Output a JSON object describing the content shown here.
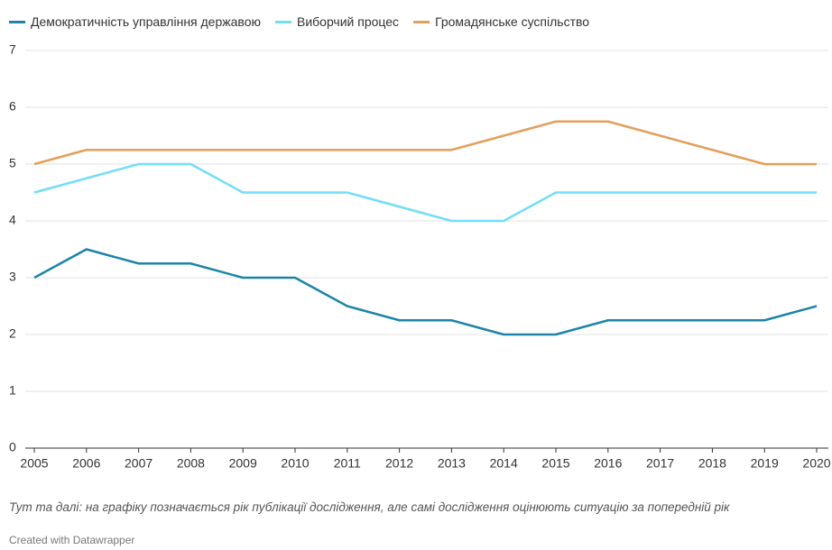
{
  "chart_data": {
    "type": "line",
    "x": [
      2005,
      2006,
      2007,
      2008,
      2009,
      2010,
      2011,
      2012,
      2013,
      2014,
      2015,
      2016,
      2017,
      2018,
      2019,
      2020
    ],
    "series": [
      {
        "name": "Демократичність управління державою",
        "color": "#1d84a8",
        "values": [
          3,
          3.5,
          3.25,
          3.25,
          3,
          3,
          2.5,
          2.25,
          2.25,
          2,
          2,
          2.25,
          2.25,
          2.25,
          2.25,
          2.5
        ]
      },
      {
        "name": "Виборчий процес",
        "color": "#72def6",
        "values": [
          4.5,
          4.75,
          5,
          5,
          4.5,
          4.5,
          4.5,
          4.25,
          4,
          4,
          4.5,
          4.5,
          4.5,
          4.5,
          4.5,
          4.5
        ]
      },
      {
        "name": "Громадянське суспільство",
        "color": "#e39f5c",
        "values": [
          5,
          5.25,
          5.25,
          5.25,
          5.25,
          5.25,
          5.25,
          5.25,
          5.25,
          5.5,
          5.75,
          5.75,
          5.5,
          5.25,
          5,
          5
        ]
      }
    ],
    "xlim": [
      2005,
      2020
    ],
    "xticks": [
      2005,
      2006,
      2007,
      2008,
      2009,
      2010,
      2011,
      2012,
      2013,
      2014,
      2015,
      2016,
      2017,
      2018,
      2019,
      2020
    ],
    "ylim": [
      0,
      7
    ],
    "yticks": [
      0,
      1,
      2,
      3,
      4,
      5,
      6,
      7
    ],
    "grid": true,
    "note": "Тут та далі: на графіку позначається рік публікації дослідження, але самі дослідження оцінюють ситуацію за попередній рік",
    "credit": "Created with Datawrapper"
  }
}
